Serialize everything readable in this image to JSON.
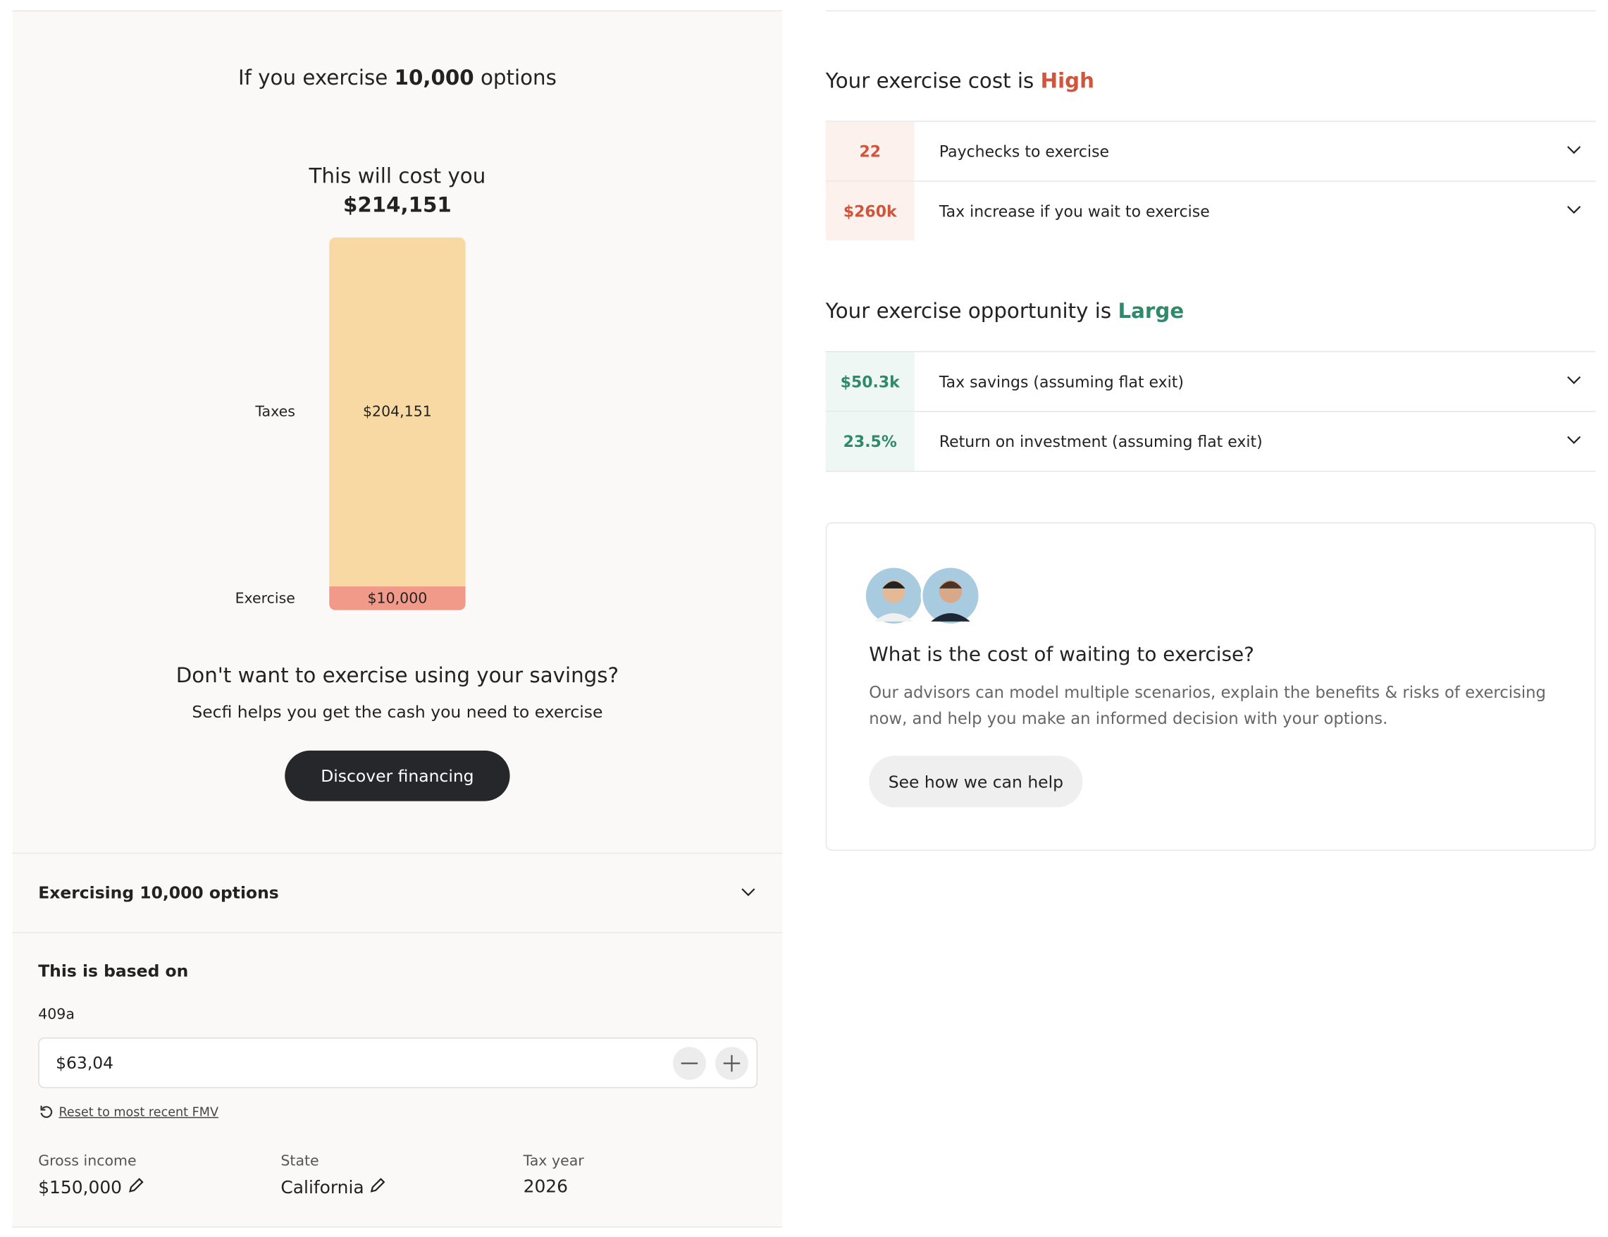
{
  "left": {
    "headline": {
      "before": "If you exercise",
      "bold": "10,000",
      "after": "options"
    },
    "cost_intro": "This will cost you",
    "cost_total": "$214,151",
    "bar": [
      {
        "label": "Taxes",
        "value": "$204,151"
      },
      {
        "label": "Exercise",
        "value": "$10,000"
      }
    ],
    "financing": {
      "title": "Don't want to exercise using your savings?",
      "subtitle": "Secfi helps you get the cash you need to exercise",
      "button": "Discover financing"
    },
    "accordion_title": "Exercising 10,000 options",
    "based_on": {
      "title": "This is based on",
      "field_label": "409a",
      "field_value": "$63,04",
      "reset": "Reset to most recent FMV",
      "details": [
        {
          "label": "Gross income",
          "value": "$150,000"
        },
        {
          "label": "State",
          "value": "California"
        },
        {
          "label": "Tax year",
          "value": "2026"
        }
      ]
    }
  },
  "right": {
    "cost": {
      "title": "Your exercise cost is",
      "rating": "High",
      "rows": [
        {
          "metric": "22",
          "text": "Paychecks to exercise"
        },
        {
          "metric": "$260k",
          "text": "Tax increase if you wait to exercise"
        }
      ]
    },
    "opportunity": {
      "title": "Your exercise opportunity is",
      "rating": "Large",
      "rows": [
        {
          "metric": "$50.3k",
          "text": "Tax savings (assuming flat exit)"
        },
        {
          "metric": "23.5%",
          "text": "Return on investment (assuming flat exit)"
        }
      ]
    },
    "advisor": {
      "title": "What is the cost of waiting to exercise?",
      "body": "Our advisors can model multiple scenarios, explain the benefits & risks of exercising now, and help you make an informed decision with your options.",
      "button": "See how we can help"
    }
  }
}
